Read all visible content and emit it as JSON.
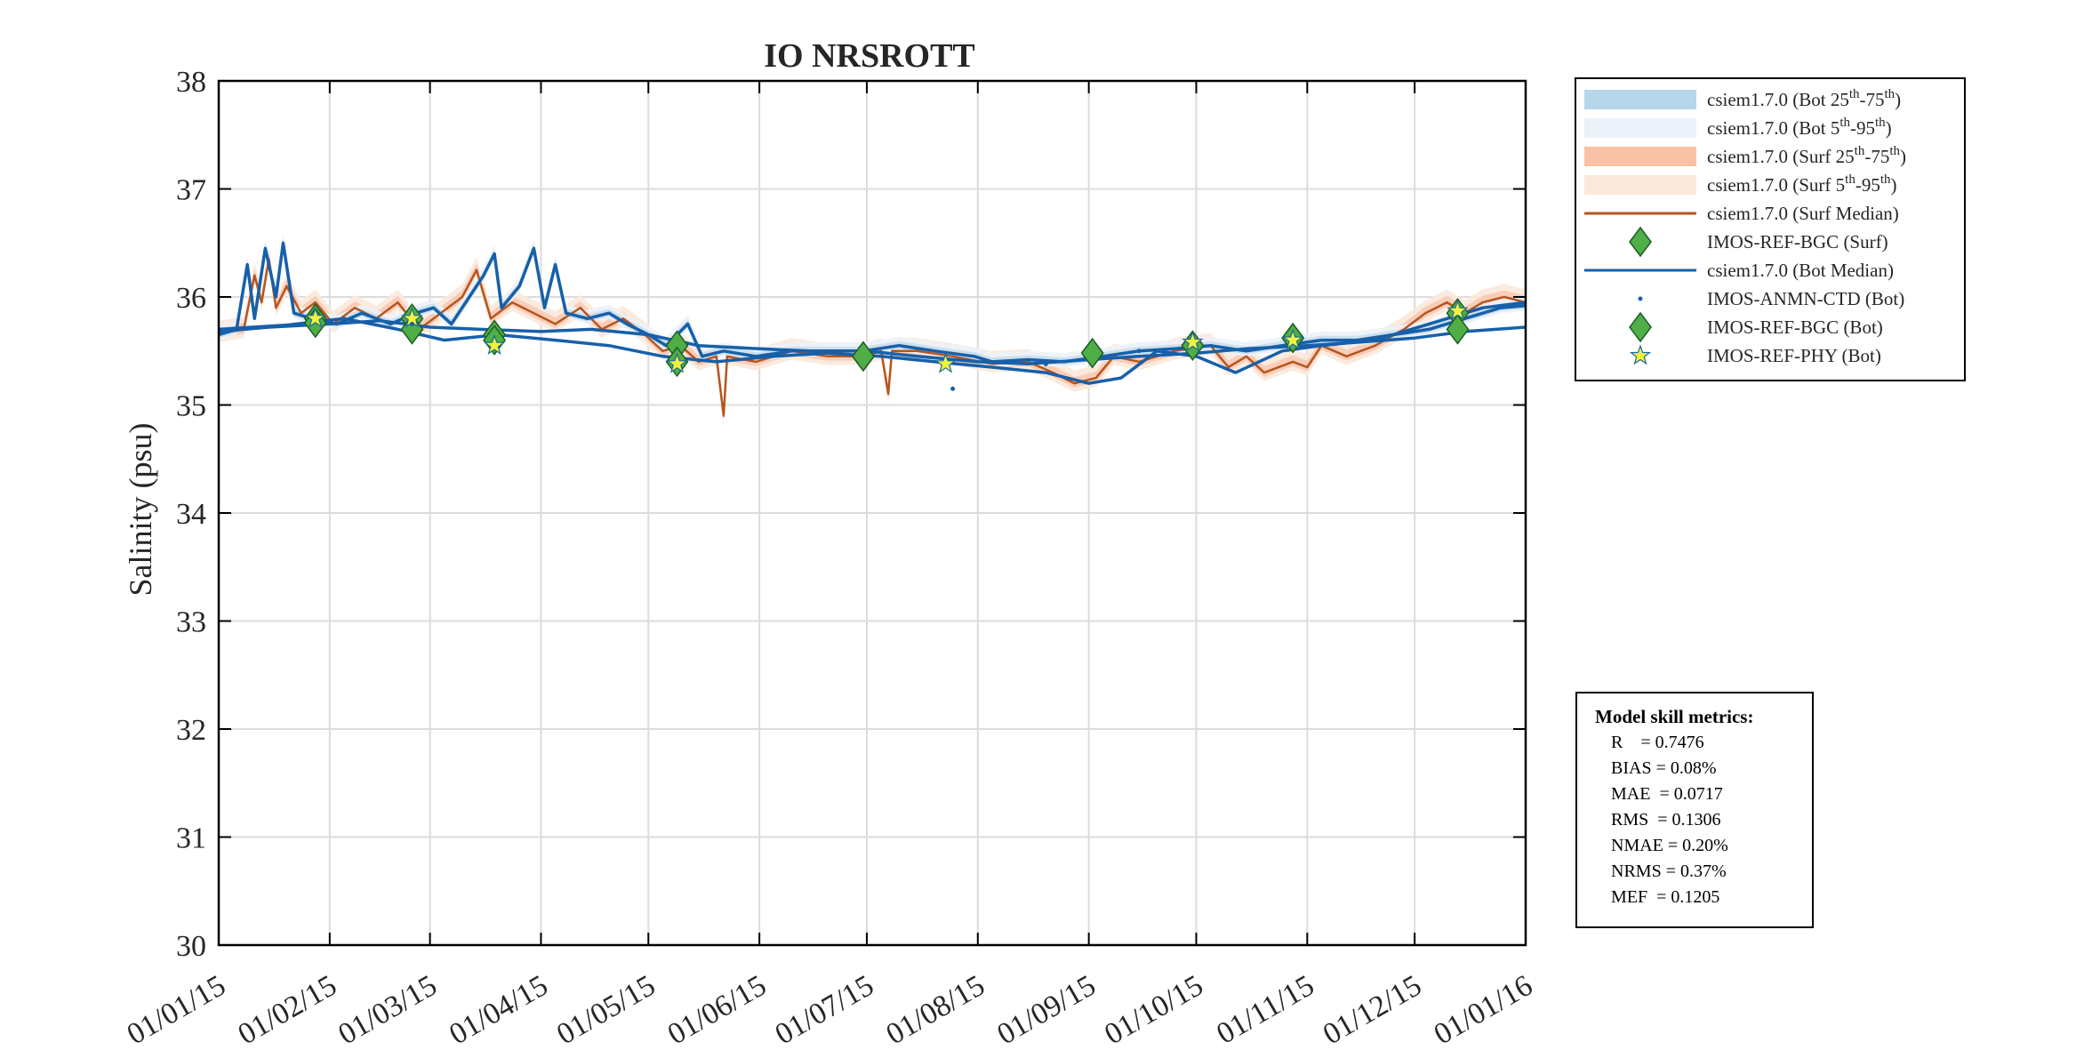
{
  "colors": {
    "surf_median": "#b5561f",
    "bot_median": "#1760a9",
    "bot_iqr": "#b6d6ea",
    "bot_90": "#ecf2f9",
    "surf_iqr": "#f9c1a6",
    "surf_90": "#fbe9dc",
    "marker_green": "#4fae45",
    "marker_star": "#f2f23a"
  },
  "chart_data": {
    "type": "line",
    "title": "IO NRSROTT",
    "xlabel": "",
    "ylabel": "Salinity (psu)",
    "ylim": [
      30,
      38
    ],
    "yticks": [
      30,
      31,
      32,
      33,
      34,
      35,
      36,
      37,
      38
    ],
    "xlim": [
      "2015-01-01",
      "2016-01-01"
    ],
    "xtick_labels": [
      "01/01/15",
      "01/02/15",
      "01/03/15",
      "01/04/15",
      "01/05/15",
      "01/06/15",
      "01/07/15",
      "01/08/15",
      "01/09/15",
      "01/10/15",
      "01/11/15",
      "01/12/15",
      "01/01/16"
    ],
    "xtick_dates": [
      "2015-01-01",
      "2015-02-01",
      "2015-03-01",
      "2015-04-01",
      "2015-05-01",
      "2015-06-01",
      "2015-07-01",
      "2015-08-01",
      "2015-09-01",
      "2015-10-01",
      "2015-11-01",
      "2015-12-01",
      "2016-01-01"
    ],
    "grid": true,
    "legend_position": "outside-right-top",
    "legend": [
      {
        "label": "csiem1.7.0 (Bot 25",
        "sup1": "th",
        "mid": "-75",
        "sup2": "th",
        "end": ")",
        "kind": "band",
        "color_key": "bot_iqr"
      },
      {
        "label": "csiem1.7.0 (Bot 5",
        "sup1": "th",
        "mid": "-95",
        "sup2": "th",
        "end": ")",
        "kind": "band",
        "color_key": "bot_90"
      },
      {
        "label": "csiem1.7.0 (Surf 25",
        "sup1": "th",
        "mid": "-75",
        "sup2": "th",
        "end": ")",
        "kind": "band",
        "color_key": "surf_iqr"
      },
      {
        "label": "csiem1.7.0 (Surf 5",
        "sup1": "th",
        "mid": "-95",
        "sup2": "th",
        "end": ")",
        "kind": "band",
        "color_key": "surf_90"
      },
      {
        "label": "csiem1.7.0 (Surf Median)",
        "kind": "line",
        "color_key": "surf_median"
      },
      {
        "label": "IMOS-REF-BGC (Surf)",
        "kind": "diamond",
        "color_key": "marker_green"
      },
      {
        "label": "csiem1.7.0 (Bot Median)",
        "kind": "line",
        "color_key": "bot_median"
      },
      {
        "label": "IMOS-ANMN-CTD (Bot)",
        "kind": "dot",
        "color_key": "bot_median"
      },
      {
        "label": "IMOS-REF-BGC (Bot)",
        "kind": "diamond",
        "color_key": "marker_green"
      },
      {
        "label": "IMOS-REF-PHY (Bot)",
        "kind": "star",
        "color_key": "marker_star"
      }
    ],
    "series": [
      {
        "name": "csiem1.7.0 (Surf Median)",
        "kind": "line",
        "points": [
          [
            "2015-01-01",
            35.66
          ],
          [
            "2015-01-08",
            35.7
          ],
          [
            "2015-01-11",
            36.2
          ],
          [
            "2015-01-13",
            35.95
          ],
          [
            "2015-01-15",
            36.35
          ],
          [
            "2015-01-17",
            35.9
          ],
          [
            "2015-01-20",
            36.1
          ],
          [
            "2015-01-24",
            35.85
          ],
          [
            "2015-01-28",
            35.95
          ],
          [
            "2015-02-02",
            35.75
          ],
          [
            "2015-02-08",
            35.9
          ],
          [
            "2015-02-14",
            35.8
          ],
          [
            "2015-02-20",
            35.95
          ],
          [
            "2015-02-26",
            35.7
          ],
          [
            "2015-03-04",
            35.85
          ],
          [
            "2015-03-10",
            36.0
          ],
          [
            "2015-03-14",
            36.25
          ],
          [
            "2015-03-18",
            35.8
          ],
          [
            "2015-03-24",
            35.95
          ],
          [
            "2015-03-30",
            35.85
          ],
          [
            "2015-04-05",
            35.75
          ],
          [
            "2015-04-12",
            35.9
          ],
          [
            "2015-04-18",
            35.7
          ],
          [
            "2015-04-24",
            35.8
          ],
          [
            "2015-04-30",
            35.65
          ],
          [
            "2015-05-05",
            35.5
          ],
          [
            "2015-05-10",
            35.55
          ],
          [
            "2015-05-15",
            35.4
          ],
          [
            "2015-05-20",
            35.45
          ],
          [
            "2015-05-22",
            34.9
          ],
          [
            "2015-05-23",
            35.45
          ],
          [
            "2015-05-31",
            35.4
          ],
          [
            "2015-06-10",
            35.5
          ],
          [
            "2015-06-20",
            35.45
          ],
          [
            "2015-06-30",
            35.45
          ],
          [
            "2015-07-05",
            35.5
          ],
          [
            "2015-07-07",
            35.1
          ],
          [
            "2015-07-08",
            35.5
          ],
          [
            "2015-07-15",
            35.5
          ],
          [
            "2015-07-25",
            35.45
          ],
          [
            "2015-08-05",
            35.38
          ],
          [
            "2015-08-15",
            35.4
          ],
          [
            "2015-08-22",
            35.3
          ],
          [
            "2015-08-28",
            35.2
          ],
          [
            "2015-09-03",
            35.25
          ],
          [
            "2015-09-08",
            35.45
          ],
          [
            "2015-09-15",
            35.4
          ],
          [
            "2015-09-25",
            35.5
          ],
          [
            "2015-10-05",
            35.55
          ],
          [
            "2015-10-10",
            35.35
          ],
          [
            "2015-10-15",
            35.45
          ],
          [
            "2015-10-20",
            35.3
          ],
          [
            "2015-10-28",
            35.4
          ],
          [
            "2015-11-01",
            35.35
          ],
          [
            "2015-11-05",
            35.55
          ],
          [
            "2015-11-12",
            35.45
          ],
          [
            "2015-11-20",
            35.55
          ],
          [
            "2015-11-28",
            35.7
          ],
          [
            "2015-12-04",
            35.85
          ],
          [
            "2015-12-10",
            35.95
          ],
          [
            "2015-12-15",
            35.85
          ],
          [
            "2015-12-20",
            35.95
          ],
          [
            "2015-12-26",
            36.0
          ],
          [
            "2016-01-01",
            35.95
          ]
        ]
      },
      {
        "name": "csiem1.7.0 (Bot Median)",
        "kind": "line",
        "points": [
          [
            "2015-01-01",
            35.65
          ],
          [
            "2015-01-06",
            35.7
          ],
          [
            "2015-01-09",
            36.3
          ],
          [
            "2015-01-11",
            35.8
          ],
          [
            "2015-01-14",
            36.45
          ],
          [
            "2015-01-17",
            36.0
          ],
          [
            "2015-01-19",
            36.5
          ],
          [
            "2015-01-22",
            35.85
          ],
          [
            "2015-01-27",
            35.8
          ],
          [
            "2015-02-03",
            35.75
          ],
          [
            "2015-02-10",
            35.85
          ],
          [
            "2015-02-18",
            35.75
          ],
          [
            "2015-02-25",
            35.85
          ],
          [
            "2015-03-02",
            35.9
          ],
          [
            "2015-03-07",
            35.75
          ],
          [
            "2015-03-12",
            36.0
          ],
          [
            "2015-03-16",
            36.2
          ],
          [
            "2015-03-19",
            36.4
          ],
          [
            "2015-03-21",
            35.9
          ],
          [
            "2015-03-26",
            36.1
          ],
          [
            "2015-03-30",
            36.45
          ],
          [
            "2015-04-02",
            35.9
          ],
          [
            "2015-04-05",
            36.3
          ],
          [
            "2015-04-08",
            35.85
          ],
          [
            "2015-04-14",
            35.8
          ],
          [
            "2015-04-20",
            35.85
          ],
          [
            "2015-04-25",
            35.75
          ],
          [
            "2015-05-01",
            35.65
          ],
          [
            "2015-05-06",
            35.55
          ],
          [
            "2015-05-12",
            35.75
          ],
          [
            "2015-05-16",
            35.45
          ],
          [
            "2015-05-22",
            35.5
          ],
          [
            "2015-05-31",
            35.45
          ],
          [
            "2015-06-10",
            35.5
          ],
          [
            "2015-06-20",
            35.5
          ],
          [
            "2015-06-30",
            35.5
          ],
          [
            "2015-07-10",
            35.55
          ],
          [
            "2015-07-20",
            35.5
          ],
          [
            "2015-07-31",
            35.45
          ],
          [
            "2015-08-05",
            35.4
          ],
          [
            "2015-08-15",
            35.42
          ],
          [
            "2015-08-25",
            35.4
          ],
          [
            "2015-09-05",
            35.45
          ],
          [
            "2015-09-15",
            35.5
          ],
          [
            "2015-09-25",
            35.52
          ],
          [
            "2015-10-05",
            35.55
          ],
          [
            "2015-10-15",
            35.5
          ],
          [
            "2015-10-25",
            35.55
          ],
          [
            "2015-11-05",
            35.6
          ],
          [
            "2015-11-15",
            35.6
          ],
          [
            "2015-11-25",
            35.65
          ],
          [
            "2015-12-05",
            35.7
          ],
          [
            "2015-12-15",
            35.8
          ],
          [
            "2015-12-25",
            35.9
          ],
          [
            "2016-01-01",
            35.92
          ]
        ]
      },
      {
        "name": "csiem1.7.0 (Bot Median)",
        "kind": "line",
        "points": [
          [
            "2015-01-01",
            35.68
          ],
          [
            "2015-01-15",
            35.72
          ],
          [
            "2015-02-01",
            35.75
          ],
          [
            "2015-02-15",
            35.78
          ],
          [
            "2015-03-01",
            35.72
          ],
          [
            "2015-03-15",
            35.7
          ],
          [
            "2015-04-01",
            35.68
          ],
          [
            "2015-04-15",
            35.7
          ],
          [
            "2015-05-01",
            35.65
          ],
          [
            "2015-05-15",
            35.55
          ],
          [
            "2015-06-01",
            35.52
          ],
          [
            "2015-06-15",
            35.5
          ],
          [
            "2015-07-01",
            35.5
          ],
          [
            "2015-07-15",
            35.45
          ],
          [
            "2015-08-01",
            35.4
          ],
          [
            "2015-08-15",
            35.38
          ],
          [
            "2015-09-01",
            35.42
          ],
          [
            "2015-09-15",
            35.45
          ],
          [
            "2015-10-01",
            35.48
          ],
          [
            "2015-10-15",
            35.52
          ],
          [
            "2015-11-01",
            35.55
          ],
          [
            "2015-11-15",
            35.58
          ],
          [
            "2015-12-01",
            35.62
          ],
          [
            "2015-12-15",
            35.68
          ],
          [
            "2016-01-01",
            35.72
          ]
        ]
      },
      {
        "name": "csiem1.7.0 (Bot Median)",
        "kind": "line",
        "points": [
          [
            "2015-01-01",
            35.7
          ],
          [
            "2015-01-20",
            35.74
          ],
          [
            "2015-02-05",
            35.8
          ],
          [
            "2015-02-20",
            35.7
          ],
          [
            "2015-03-05",
            35.6
          ],
          [
            "2015-03-20",
            35.65
          ],
          [
            "2015-04-05",
            35.6
          ],
          [
            "2015-04-20",
            35.55
          ],
          [
            "2015-05-05",
            35.45
          ],
          [
            "2015-05-20",
            35.4
          ],
          [
            "2015-06-05",
            35.45
          ],
          [
            "2015-06-20",
            35.48
          ],
          [
            "2015-07-05",
            35.45
          ],
          [
            "2015-07-20",
            35.4
          ],
          [
            "2015-08-05",
            35.35
          ],
          [
            "2015-08-20",
            35.3
          ],
          [
            "2015-09-01",
            35.2
          ],
          [
            "2015-09-10",
            35.25
          ],
          [
            "2015-09-20",
            35.5
          ],
          [
            "2015-10-01",
            35.45
          ],
          [
            "2015-10-12",
            35.3
          ],
          [
            "2015-10-25",
            35.5
          ],
          [
            "2015-11-05",
            35.55
          ],
          [
            "2015-11-20",
            35.6
          ],
          [
            "2015-12-05",
            35.75
          ],
          [
            "2015-12-20",
            35.9
          ],
          [
            "2016-01-01",
            35.95
          ]
        ]
      }
    ],
    "observations": [
      {
        "name": "IMOS-REF-BGC (Surf)",
        "marker": "diamond",
        "points": [
          [
            "2015-01-28",
            35.8
          ],
          [
            "2015-02-24",
            35.8
          ],
          [
            "2015-03-19",
            35.65
          ],
          [
            "2015-05-09",
            35.55
          ],
          [
            "2015-06-30",
            35.45
          ],
          [
            "2015-09-02",
            35.48
          ],
          [
            "2015-09-30",
            35.55
          ],
          [
            "2015-10-28",
            35.62
          ],
          [
            "2015-12-13",
            35.85
          ]
        ]
      },
      {
        "name": "IMOS-REF-BGC (Bot)",
        "marker": "diamond",
        "points": [
          [
            "2015-01-28",
            35.76
          ],
          [
            "2015-02-24",
            35.7
          ],
          [
            "2015-03-19",
            35.6
          ],
          [
            "2015-05-09",
            35.4
          ],
          [
            "2015-06-30",
            35.45
          ],
          [
            "2015-09-02",
            35.48
          ],
          [
            "2015-09-30",
            35.55
          ],
          [
            "2015-10-28",
            35.62
          ],
          [
            "2015-12-13",
            35.7
          ]
        ]
      },
      {
        "name": "IMOS-REF-PHY (Bot)",
        "marker": "star",
        "points": [
          [
            "2015-01-28",
            35.8
          ],
          [
            "2015-02-24",
            35.8
          ],
          [
            "2015-03-19",
            35.55
          ],
          [
            "2015-05-09",
            35.38
          ],
          [
            "2015-07-23",
            35.38
          ],
          [
            "2015-09-30",
            35.58
          ],
          [
            "2015-10-28",
            35.6
          ],
          [
            "2015-12-13",
            35.87
          ]
        ]
      },
      {
        "name": "IMOS-ANMN-CTD (Bot)",
        "marker": "dot",
        "points": [
          [
            "2015-02-24",
            35.75
          ],
          [
            "2015-07-25",
            35.15
          ],
          [
            "2015-08-20",
            35.38
          ],
          [
            "2015-09-15",
            35.5
          ]
        ]
      }
    ]
  },
  "metrics": {
    "title": "Model skill metrics:",
    "rows": [
      "R    = 0.7476",
      "BIAS = 0.08%",
      "MAE  = 0.0717",
      "RMS  = 0.1306",
      "NMAE = 0.20%",
      "NRMS = 0.37%",
      "MEF  = 0.1205"
    ]
  }
}
